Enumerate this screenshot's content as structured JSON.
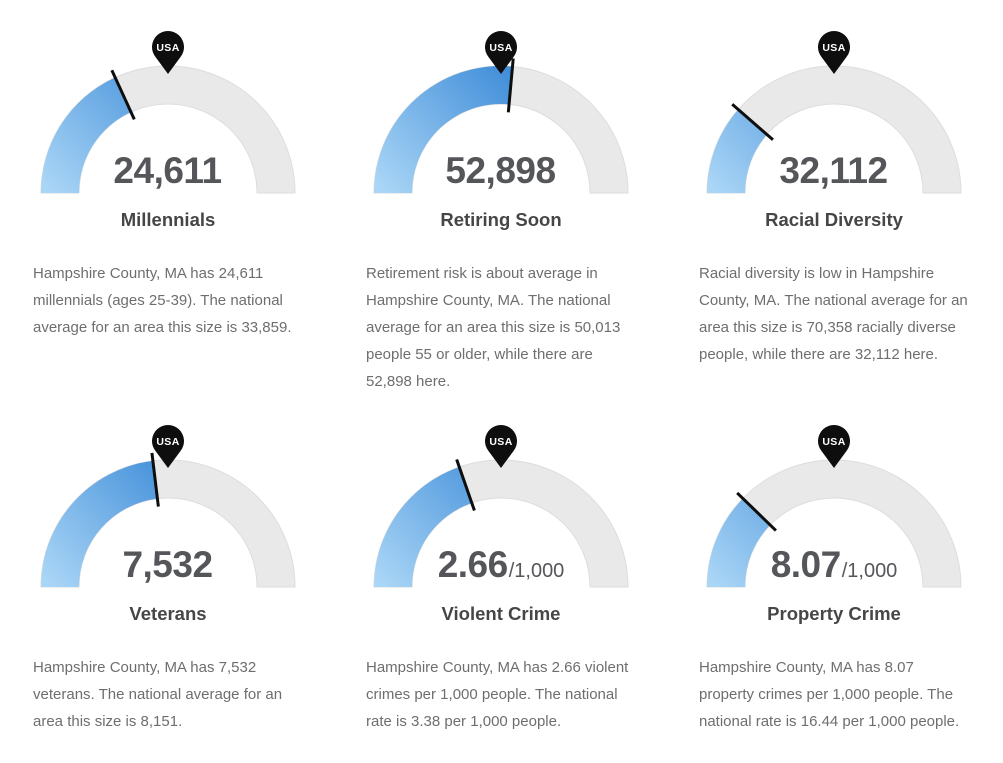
{
  "pin_label": "USA",
  "colors": {
    "arc_background": "#e9e9e9",
    "arc_border": "#dddddd",
    "value_arc_start": "#a9d5f6",
    "value_arc_end": "#3787d6",
    "tick": "#0e0e0e",
    "pin": "#0e0e0e",
    "pin_text": "#ffffff",
    "value_text": "#55565a",
    "title_text": "#464646",
    "body_text": "#6e6e6e"
  },
  "chart_data": [
    {
      "type": "gauge",
      "title": "Millennials",
      "display_value": "24,611",
      "suffix": "",
      "value": 24611,
      "national_average": 33859,
      "gauge_min": 0,
      "gauge_max": 67718,
      "usa_marker_fraction": 0.5,
      "description": "Hampshire County, MA has 24,611 millennials (ages 25-39). The national average for an area this size is 33,859."
    },
    {
      "type": "gauge",
      "title": "Retiring Soon",
      "display_value": "52,898",
      "suffix": "",
      "value": 52898,
      "national_average": 50013,
      "gauge_min": 0,
      "gauge_max": 100026,
      "usa_marker_fraction": 0.5,
      "description": "Retirement risk is about average in Hampshire County, MA. The national average for an area this size is 50,013 people 55 or older, while there are 52,898 here."
    },
    {
      "type": "gauge",
      "title": "Racial Diversity",
      "display_value": "32,112",
      "suffix": "",
      "value": 32112,
      "national_average": 70358,
      "gauge_min": 0,
      "gauge_max": 140716,
      "usa_marker_fraction": 0.5,
      "description": "Racial diversity is low in Hampshire County, MA. The national average for an area this size is 70,358 racially diverse people, while there are 32,112 here."
    },
    {
      "type": "gauge",
      "title": "Veterans",
      "display_value": "7,532",
      "suffix": "",
      "value": 7532,
      "national_average": 8151,
      "gauge_min": 0,
      "gauge_max": 16302,
      "usa_marker_fraction": 0.5,
      "description": "Hampshire County, MA has 7,532 veterans. The national average for an area this size is 8,151."
    },
    {
      "type": "gauge",
      "title": "Violent Crime",
      "display_value": "2.66",
      "suffix": "/1,000",
      "value": 2.66,
      "national_average": 3.38,
      "gauge_min": 0,
      "gauge_max": 6.76,
      "usa_marker_fraction": 0.5,
      "description": "Hampshire County, MA has 2.66 violent crimes per 1,000 people. The national rate is 3.38 per 1,000 people."
    },
    {
      "type": "gauge",
      "title": "Property Crime",
      "display_value": "8.07",
      "suffix": "/1,000",
      "value": 8.07,
      "national_average": 16.44,
      "gauge_min": 0,
      "gauge_max": 32.88,
      "usa_marker_fraction": 0.5,
      "description": "Hampshire County, MA has 8.07 property crimes per 1,000 people. The national rate is 16.44 per 1,000 people."
    }
  ]
}
